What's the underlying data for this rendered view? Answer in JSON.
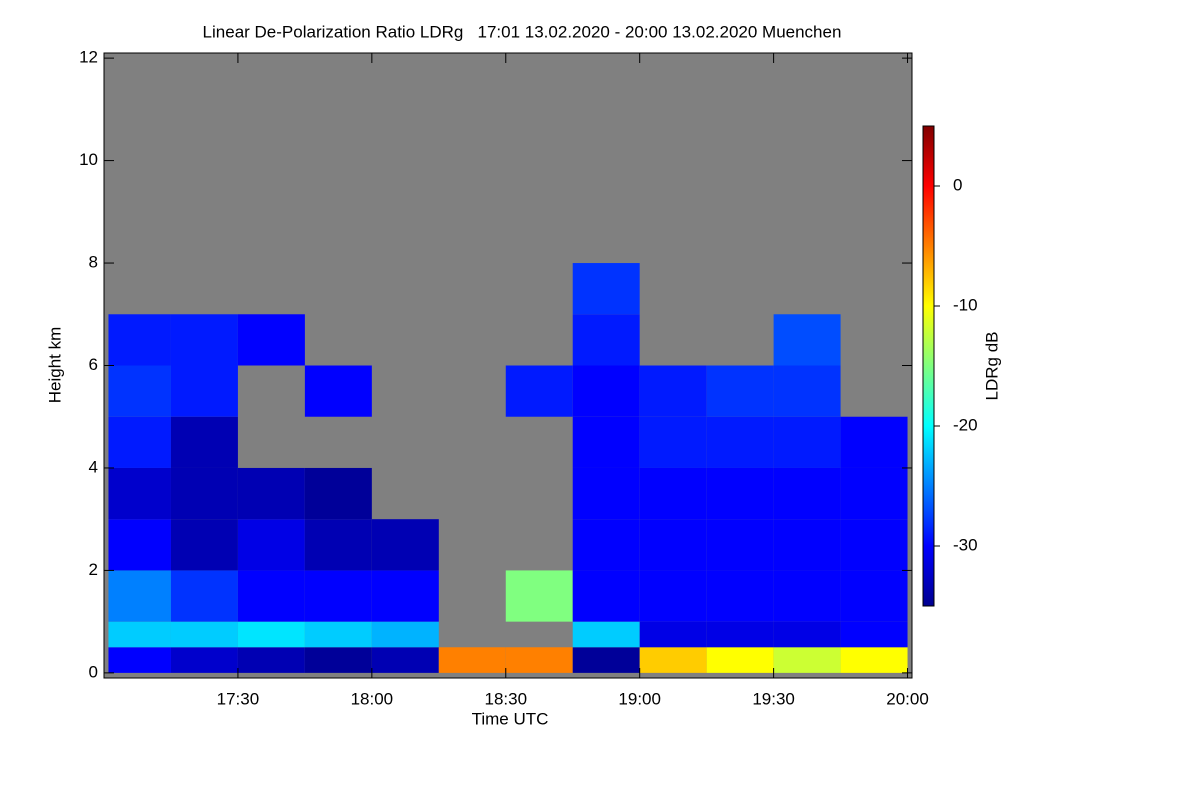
{
  "chart_data": {
    "type": "heatmap",
    "title": "Linear De-Polarization Ratio LDRg   17:01 13.02.2020 - 20:00 13.02.2020 Muenchen",
    "x_label": "Time UTC",
    "y_label": "Height km",
    "colorbar_label": "LDRg dB",
    "x": [
      1021,
      1035,
      1050,
      1065,
      1080,
      1095,
      1110,
      1125,
      1140,
      1155,
      1170,
      1185,
      1200
    ],
    "y": [
      0,
      0.5,
      1,
      2,
      3,
      4,
      5,
      6,
      7,
      8,
      12
    ],
    "z": [
      [
        -30,
        -32,
        -33,
        -34,
        -33,
        -5,
        -5,
        -34,
        -8,
        -10,
        -12,
        -10
      ],
      [
        -22,
        -22,
        -21,
        -22,
        -23,
        null,
        null,
        -22,
        -31,
        -31,
        -31,
        -30
      ],
      [
        -25,
        -28,
        -30,
        -30,
        -30,
        null,
        -15,
        -30,
        -30,
        -30,
        -30,
        -30
      ],
      [
        -30,
        -33,
        -31,
        -33,
        -33,
        null,
        null,
        -30,
        -30,
        -30,
        -30,
        -30
      ],
      [
        -32,
        -33,
        -33,
        -34,
        null,
        null,
        null,
        -30,
        -30,
        -30,
        -30,
        -30
      ],
      [
        -29,
        -33,
        null,
        null,
        null,
        null,
        null,
        -30,
        -29,
        -29,
        -29,
        -30
      ],
      [
        -28,
        -29,
        null,
        -30,
        null,
        null,
        -29,
        -30,
        -29,
        -28,
        -28,
        null
      ],
      [
        -29,
        -29,
        -30,
        null,
        null,
        null,
        null,
        -29,
        null,
        null,
        -27,
        null
      ],
      [
        null,
        null,
        null,
        null,
        null,
        null,
        null,
        -28,
        null,
        null,
        null,
        null
      ],
      [
        null,
        null,
        null,
        null,
        null,
        null,
        null,
        null,
        null,
        null,
        null,
        null
      ]
    ],
    "xlim": [
      1020,
      1201
    ],
    "ylim": [
      -0.1,
      12.1
    ],
    "xticks": [
      {
        "value": 1050,
        "label": "17:30"
      },
      {
        "value": 1080,
        "label": "18:00"
      },
      {
        "value": 1110,
        "label": "18:30"
      },
      {
        "value": 1140,
        "label": "19:00"
      },
      {
        "value": 1170,
        "label": "19:30"
      },
      {
        "value": 1200,
        "label": "20:00"
      }
    ],
    "yticks": [
      0,
      2,
      4,
      6,
      8,
      10,
      12
    ],
    "clim": [
      -35,
      5
    ],
    "cticks": [
      0,
      -10,
      -20,
      -30
    ],
    "colormap": "jet",
    "missing_color": "#808080"
  }
}
